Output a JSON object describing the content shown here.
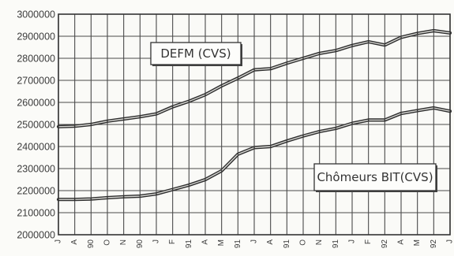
{
  "chart_data": {
    "type": "line",
    "title": "",
    "xlabel": "",
    "ylabel": "",
    "x_tick_labels": [
      "J",
      "A",
      "90",
      "O",
      "N",
      "90",
      "J",
      "F",
      "91",
      "A",
      "M",
      "91",
      "J",
      "A",
      "91",
      "O",
      "N",
      "91",
      "J",
      "F",
      "92",
      "A",
      "M",
      "92",
      "J"
    ],
    "ylim": [
      2000000,
      3000000
    ],
    "yticks": [
      2000000,
      2100000,
      2200000,
      2300000,
      2400000,
      2500000,
      2600000,
      2700000,
      2800000,
      2900000,
      3000000
    ],
    "grid": true,
    "series": [
      {
        "name": "DEFM (CVS)",
        "values": [
          2490000,
          2492000,
          2500000,
          2515000,
          2525000,
          2535000,
          2548000,
          2580000,
          2605000,
          2635000,
          2675000,
          2710000,
          2748000,
          2753000,
          2778000,
          2800000,
          2822000,
          2835000,
          2858000,
          2875000,
          2860000,
          2895000,
          2913000,
          2925000,
          2915000
        ]
      },
      {
        "name": "Chômeurs BIT(CVS)",
        "values": [
          2160000,
          2160000,
          2162000,
          2168000,
          2172000,
          2175000,
          2185000,
          2205000,
          2225000,
          2250000,
          2290000,
          2365000,
          2395000,
          2400000,
          2425000,
          2448000,
          2468000,
          2482000,
          2505000,
          2520000,
          2520000,
          2550000,
          2563000,
          2575000,
          2560000
        ]
      }
    ],
    "labels": {
      "defm": "DEFM (CVS)",
      "bit": "Chômeurs BIT(CVS)"
    }
  }
}
